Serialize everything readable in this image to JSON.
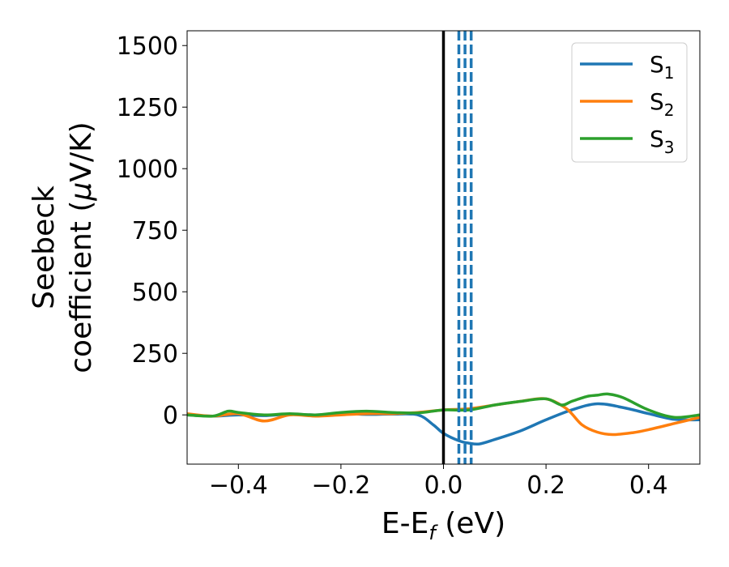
{
  "chart_data": {
    "type": "line",
    "xlabel": {
      "main": "E-E",
      "sub": "f",
      "suffix": " (eV)"
    },
    "ylabel": {
      "line1": "Seebeck",
      "line2_prefix": "coefficient  (",
      "mu": "μ",
      "line2_suffix": "V/K)"
    },
    "xlim": [
      -0.5,
      0.5
    ],
    "ylim": [
      -200,
      1560
    ],
    "xticks": [
      -0.4,
      -0.2,
      0.0,
      0.2,
      0.4
    ],
    "xtick_labels": [
      "−0.4",
      "−0.2",
      "0.0",
      "0.2",
      "0.4"
    ],
    "yticks": [
      0,
      250,
      500,
      750,
      1000,
      1250,
      1500
    ],
    "ytick_labels": [
      "0",
      "250",
      "500",
      "750",
      "1000",
      "1250",
      "1500"
    ],
    "legend_position": "top-right",
    "grid": false,
    "fermi_line": {
      "x": 0.0,
      "color": "#000000"
    },
    "dashed_lines": {
      "x": [
        0.03,
        0.042,
        0.054
      ],
      "color": "#1f77b4"
    },
    "series": [
      {
        "name": "S",
        "sub": "1",
        "color": "#1f77b4",
        "x": [
          -0.5,
          -0.45,
          -0.4,
          -0.35,
          -0.3,
          -0.25,
          -0.2,
          -0.15,
          -0.1,
          -0.05,
          -0.02,
          0.0,
          0.03,
          0.05,
          0.07,
          0.1,
          0.15,
          0.2,
          0.25,
          0.3,
          0.35,
          0.4,
          0.45,
          0.5
        ],
        "y": [
          0,
          -5,
          0,
          -3,
          3,
          0,
          5,
          2,
          3,
          0,
          -40,
          -75,
          -105,
          -115,
          -118,
          -100,
          -65,
          -20,
          20,
          45,
          30,
          5,
          -18,
          -20
        ]
      },
      {
        "name": "S",
        "sub": "2",
        "color": "#ff7f0e",
        "x": [
          -0.5,
          -0.45,
          -0.4,
          -0.35,
          -0.3,
          -0.25,
          -0.2,
          -0.15,
          -0.1,
          -0.05,
          0.0,
          0.05,
          0.1,
          0.15,
          0.2,
          0.24,
          0.27,
          0.3,
          0.33,
          0.37,
          0.4,
          0.45,
          0.5
        ],
        "y": [
          5,
          -5,
          5,
          -25,
          0,
          -5,
          0,
          5,
          5,
          10,
          20,
          25,
          40,
          55,
          65,
          25,
          -40,
          -70,
          -80,
          -72,
          -60,
          -35,
          -10
        ]
      },
      {
        "name": "S",
        "sub": "3",
        "color": "#2ca02c",
        "x": [
          -0.5,
          -0.45,
          -0.42,
          -0.4,
          -0.35,
          -0.3,
          -0.25,
          -0.2,
          -0.15,
          -0.1,
          -0.05,
          0.0,
          0.05,
          0.1,
          0.15,
          0.2,
          0.23,
          0.25,
          0.28,
          0.3,
          0.32,
          0.35,
          0.4,
          0.45,
          0.5
        ],
        "y": [
          0,
          -5,
          15,
          10,
          0,
          5,
          0,
          10,
          15,
          10,
          8,
          20,
          20,
          40,
          55,
          65,
          40,
          55,
          75,
          80,
          85,
          70,
          20,
          -10,
          0
        ]
      }
    ]
  }
}
